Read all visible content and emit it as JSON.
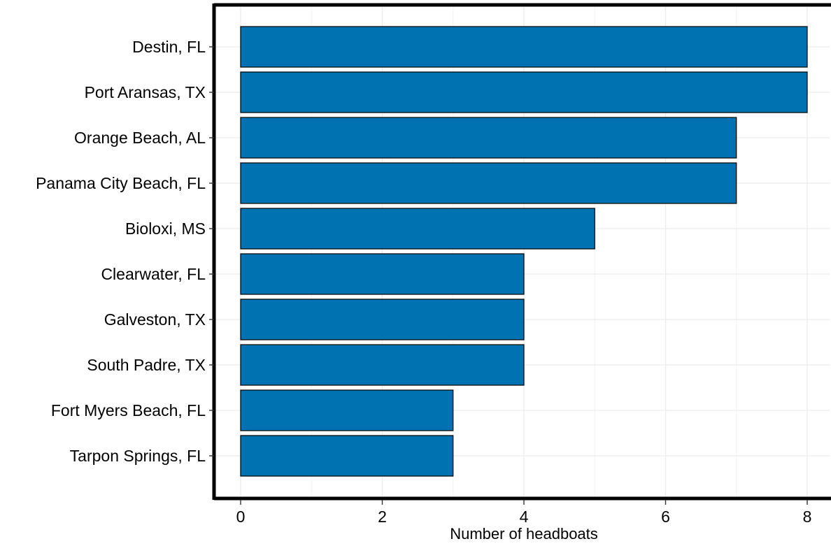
{
  "chart_data": {
    "type": "bar",
    "orientation": "horizontal",
    "categories": [
      "Destin, FL",
      "Port Aransas, TX",
      "Orange Beach, AL",
      "Panama City Beach, FL",
      "Bioloxi, MS",
      "Clearwater, FL",
      "Galveston, TX",
      "South Padre, TX",
      "Fort Myers Beach, FL",
      "Tarpon Springs, FL"
    ],
    "values": [
      8,
      8,
      7,
      7,
      5,
      4,
      4,
      4,
      3,
      3
    ],
    "title": "",
    "xlabel": "Number of headboats",
    "ylabel": "",
    "xlim": [
      0,
      8
    ],
    "x_ticks": [
      0,
      2,
      4,
      6,
      8
    ],
    "grid": true,
    "legend": "none",
    "colors": {
      "bar_fill": "#0072B2",
      "bar_stroke": "#000000",
      "grid": "#ececec",
      "frame": "#000000"
    }
  }
}
